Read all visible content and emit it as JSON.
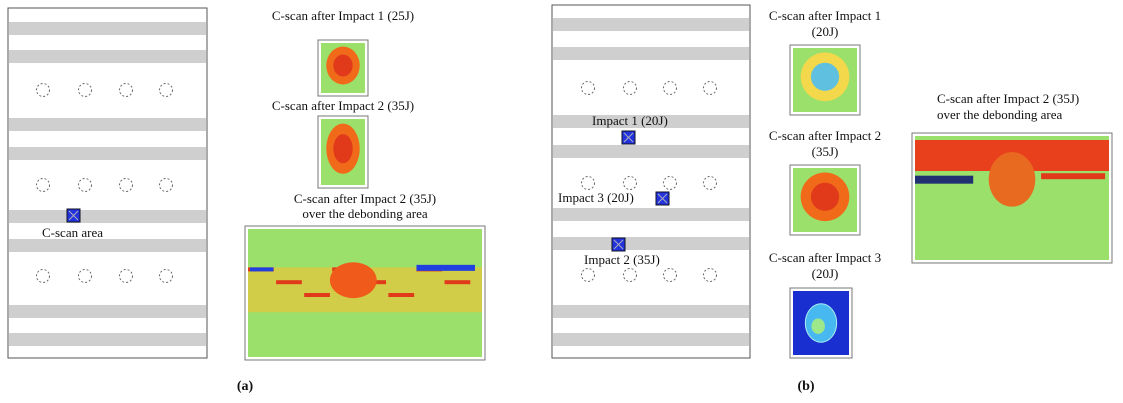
{
  "panels": [
    {
      "label": "(a)",
      "plate_labels": [
        "C-scan area"
      ],
      "scan_titles": [
        [
          "C-scan after Impact 1 (25J)"
        ],
        [
          "C-scan after Impact 2 (35J)"
        ],
        [
          "C-scan after Impact 2 (35J)",
          "over the debonding area"
        ]
      ]
    },
    {
      "label": "(b)",
      "plate_labels": [
        "Impact 1 (20J)",
        "Impact 3 (20J)",
        "Impact 2 (35J)"
      ],
      "scan_titles": [
        [
          "C-scan after Impact 1",
          "(20J)"
        ],
        [
          "C-scan after Impact 2",
          "(35J)"
        ],
        [
          "C-scan after Impact 3",
          "(20J)"
        ],
        [
          "C-scan after Impact 2 (35J)",
          "over the debonding area"
        ]
      ]
    }
  ]
}
